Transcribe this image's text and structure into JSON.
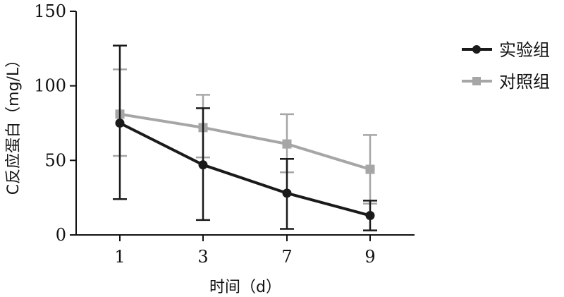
{
  "chart_data": {
    "type": "line",
    "categories": [
      "1",
      "3",
      "7",
      "9"
    ],
    "xlabel": "时间（d）",
    "ylabel": "C反应蛋白（mg/L）",
    "ylim": [
      0,
      150
    ],
    "yticks": [
      "0",
      "50",
      "100",
      "150"
    ],
    "grid": false,
    "legend_position": "top-right",
    "series": [
      {
        "name": "实验组",
        "color": "#1a1a1a",
        "marker": "circle",
        "values": [
          75,
          47,
          28,
          13
        ],
        "error_upper": [
          127,
          85,
          51,
          23
        ],
        "error_lower": [
          24,
          10,
          4,
          3
        ]
      },
      {
        "name": "对照组",
        "color": "#a6a6a6",
        "marker": "square",
        "values": [
          81,
          72,
          61,
          44
        ],
        "error_upper": [
          111,
          94,
          81,
          67
        ],
        "error_lower": [
          53,
          52,
          42,
          21
        ]
      }
    ]
  }
}
